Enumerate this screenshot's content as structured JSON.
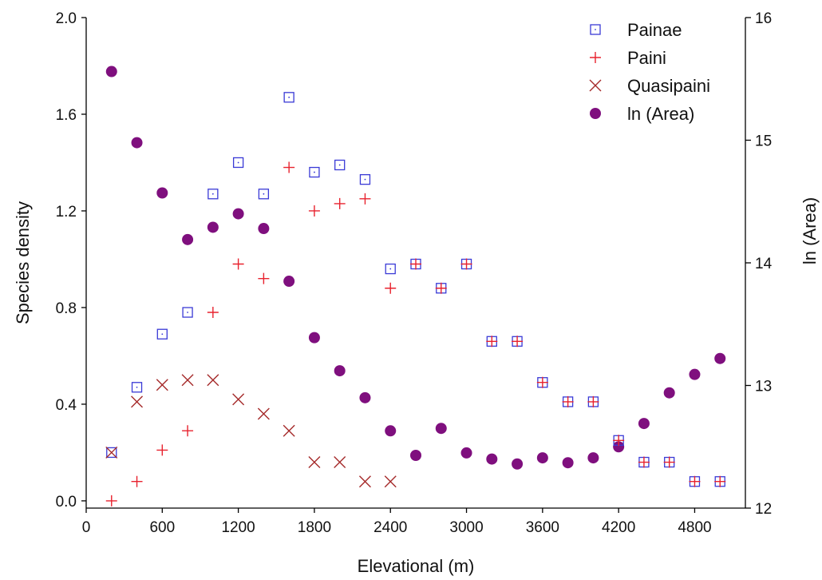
{
  "chart_data": {
    "type": "scatter",
    "xlabel": "Elevational (m)",
    "ylabel": "Species  density",
    "y2label": "ln (Area)",
    "xlim": [
      0,
      5200
    ],
    "ylim": [
      -0.03,
      2.0
    ],
    "y2lim": [
      12,
      16
    ],
    "x_ticks": [
      0,
      600,
      1200,
      1800,
      2400,
      3000,
      3600,
      4200,
      4800
    ],
    "y_ticks": [
      0.0,
      0.4,
      0.8,
      1.2,
      1.6,
      2.0
    ],
    "y_tick_labels": [
      "0.0",
      "0.4",
      "0.8",
      "1.2",
      "1.6",
      "2.0"
    ],
    "y2_ticks": [
      12,
      13,
      14,
      15,
      16
    ],
    "grid": false,
    "legend_position": "top-right",
    "series": [
      {
        "name": "Painae",
        "marker": "square",
        "color": "#3a3ad6",
        "axis": "left",
        "points": [
          [
            200,
            0.2
          ],
          [
            400,
            0.47
          ],
          [
            600,
            0.69
          ],
          [
            800,
            0.78
          ],
          [
            1000,
            1.27
          ],
          [
            1200,
            1.4
          ],
          [
            1400,
            1.27
          ],
          [
            1600,
            1.67
          ],
          [
            1800,
            1.36
          ],
          [
            2000,
            1.39
          ],
          [
            2200,
            1.33
          ],
          [
            2400,
            0.96
          ],
          [
            2600,
            0.98
          ],
          [
            2800,
            0.88
          ],
          [
            3000,
            0.98
          ],
          [
            3200,
            0.66
          ],
          [
            3400,
            0.66
          ],
          [
            3600,
            0.49
          ],
          [
            3800,
            0.41
          ],
          [
            4000,
            0.41
          ],
          [
            4200,
            0.25
          ],
          [
            4400,
            0.16
          ],
          [
            4600,
            0.16
          ],
          [
            4800,
            0.08
          ],
          [
            5000,
            0.08
          ]
        ]
      },
      {
        "name": "Paini",
        "marker": "plus",
        "color": "#e8222e",
        "axis": "left",
        "points": [
          [
            200,
            0.0
          ],
          [
            400,
            0.08
          ],
          [
            600,
            0.21
          ],
          [
            800,
            0.29
          ],
          [
            1000,
            0.78
          ],
          [
            1200,
            0.98
          ],
          [
            1400,
            0.92
          ],
          [
            1600,
            1.38
          ],
          [
            1800,
            1.2
          ],
          [
            2000,
            1.23
          ],
          [
            2200,
            1.25
          ],
          [
            2400,
            0.88
          ],
          [
            2600,
            0.98
          ],
          [
            2800,
            0.88
          ],
          [
            3000,
            0.98
          ],
          [
            3200,
            0.66
          ],
          [
            3400,
            0.66
          ],
          [
            3600,
            0.49
          ],
          [
            3800,
            0.41
          ],
          [
            4000,
            0.41
          ],
          [
            4200,
            0.25
          ],
          [
            4400,
            0.16
          ],
          [
            4600,
            0.16
          ],
          [
            4800,
            0.08
          ],
          [
            5000,
            0.08
          ]
        ]
      },
      {
        "name": "Quasipaini",
        "marker": "x",
        "color": "#a52a2a",
        "axis": "left",
        "points": [
          [
            200,
            0.2
          ],
          [
            400,
            0.41
          ],
          [
            600,
            0.48
          ],
          [
            800,
            0.5
          ],
          [
            1000,
            0.5
          ],
          [
            1200,
            0.42
          ],
          [
            1400,
            0.36
          ],
          [
            1600,
            0.29
          ],
          [
            1800,
            0.16
          ],
          [
            2000,
            0.16
          ],
          [
            2200,
            0.08
          ],
          [
            2400,
            0.08
          ]
        ]
      },
      {
        "name": "ln (Area)",
        "marker": "circle",
        "color": "#7f0f7e",
        "axis": "right",
        "points": [
          [
            200,
            15.56
          ],
          [
            400,
            14.98
          ],
          [
            600,
            14.57
          ],
          [
            800,
            14.19
          ],
          [
            1000,
            14.29
          ],
          [
            1200,
            14.4
          ],
          [
            1400,
            14.28
          ],
          [
            1600,
            13.85
          ],
          [
            1800,
            13.39
          ],
          [
            2000,
            13.12
          ],
          [
            2200,
            12.9
          ],
          [
            2400,
            12.63
          ],
          [
            2600,
            12.43
          ],
          [
            2800,
            12.65
          ],
          [
            3000,
            12.45
          ],
          [
            3200,
            12.4
          ],
          [
            3400,
            12.36
          ],
          [
            3600,
            12.41
          ],
          [
            3800,
            12.37
          ],
          [
            4000,
            12.41
          ],
          [
            4200,
            12.5
          ],
          [
            4400,
            12.69
          ],
          [
            4600,
            12.94
          ],
          [
            4800,
            13.09
          ],
          [
            5000,
            13.22
          ]
        ]
      }
    ]
  }
}
